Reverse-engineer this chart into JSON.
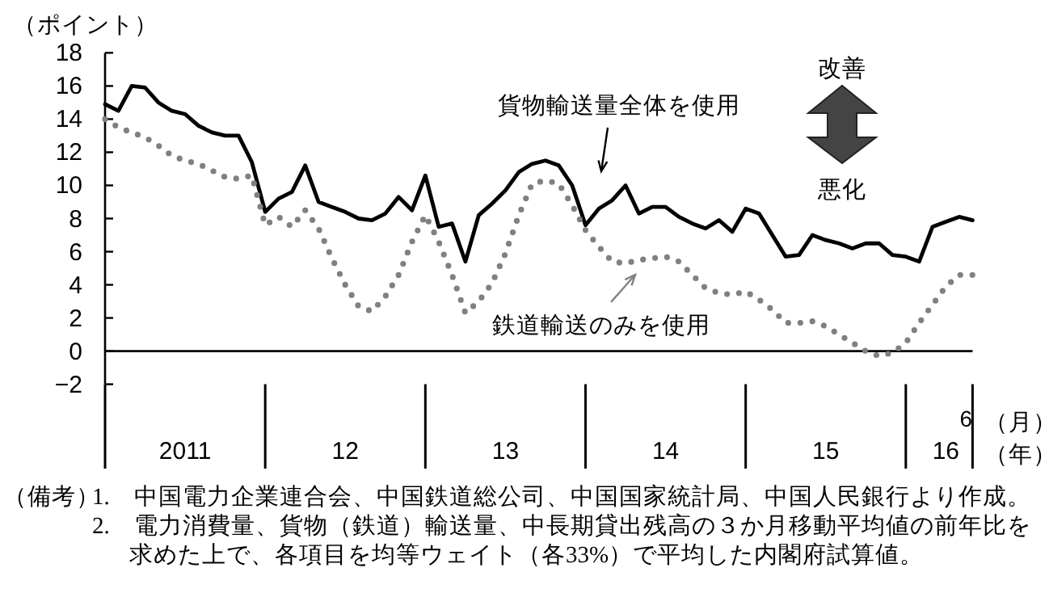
{
  "chart_data": {
    "type": "line",
    "ylabel": "（ポイント）",
    "xlabel": "（年）",
    "x": [
      "2011-01",
      "2011-02",
      "2011-03",
      "2011-04",
      "2011-05",
      "2011-06",
      "2011-07",
      "2011-08",
      "2011-09",
      "2011-10",
      "2011-11",
      "2011-12",
      "2012-01",
      "2012-02",
      "2012-03",
      "2012-04",
      "2012-05",
      "2012-06",
      "2012-07",
      "2012-08",
      "2012-09",
      "2012-10",
      "2012-11",
      "2012-12",
      "2013-01",
      "2013-02",
      "2013-03",
      "2013-04",
      "2013-05",
      "2013-06",
      "2013-07",
      "2013-08",
      "2013-09",
      "2013-10",
      "2013-11",
      "2013-12",
      "2014-01",
      "2014-02",
      "2014-03",
      "2014-04",
      "2014-05",
      "2014-06",
      "2014-07",
      "2014-08",
      "2014-09",
      "2014-10",
      "2014-11",
      "2014-12",
      "2015-01",
      "2015-02",
      "2015-03",
      "2015-04",
      "2015-05",
      "2015-06",
      "2015-07",
      "2015-08",
      "2015-09",
      "2015-10",
      "2015-11",
      "2015-12",
      "2016-01",
      "2016-02",
      "2016-03",
      "2016-04",
      "2016-05",
      "2016-06"
    ],
    "series": [
      {
        "name": "貨物輸送量全体を使用",
        "color": "#000000",
        "line_style": "solid",
        "values": [
          14.9,
          14.5,
          16.0,
          15.9,
          15.0,
          14.5,
          14.3,
          13.6,
          13.2,
          13.0,
          13.0,
          11.4,
          8.4,
          9.2,
          9.6,
          11.2,
          9.0,
          8.7,
          8.4,
          8.0,
          7.9,
          8.3,
          9.3,
          8.5,
          10.6,
          7.5,
          7.7,
          5.4,
          8.2,
          8.9,
          9.7,
          10.8,
          11.3,
          11.5,
          11.2,
          10.0,
          7.6,
          8.6,
          9.1,
          10.0,
          8.3,
          8.7,
          8.7,
          8.1,
          7.7,
          7.4,
          7.9,
          7.2,
          8.6,
          8.3,
          7.0,
          5.7,
          5.8,
          7.0,
          6.7,
          6.5,
          6.2,
          6.5,
          6.5,
          5.8,
          5.7,
          5.4,
          7.5,
          7.8,
          8.1,
          7.9
        ]
      },
      {
        "name": "鉄道輸送のみを使用",
        "color": "#808080",
        "line_style": "dotted",
        "values": [
          14.0,
          13.5,
          13.2,
          12.9,
          12.4,
          11.8,
          11.5,
          11.3,
          10.9,
          10.5,
          10.4,
          10.6,
          7.6,
          8.1,
          7.5,
          8.5,
          7.4,
          5.6,
          4.0,
          2.7,
          2.4,
          3.3,
          4.6,
          6.6,
          8.2,
          6.6,
          4.6,
          2.3,
          3.0,
          4.1,
          5.9,
          8.2,
          10.1,
          10.3,
          10.1,
          8.8,
          7.3,
          6.3,
          5.4,
          5.3,
          5.5,
          5.6,
          5.7,
          5.4,
          4.6,
          3.8,
          3.5,
          3.4,
          3.6,
          3.1,
          2.5,
          1.7,
          1.7,
          1.8,
          1.5,
          1.0,
          0.5,
          0.0,
          -0.3,
          -0.1,
          0.5,
          1.7,
          2.8,
          3.9,
          4.6,
          4.6
        ]
      }
    ],
    "xlim": [
      "2011-01",
      "2016-06"
    ],
    "xticks": [
      {
        "value": "2011-01",
        "label": null
      },
      {
        "value": "2012-01",
        "label": null
      },
      {
        "value": "2013-01",
        "label": null
      },
      {
        "value": "2014-01",
        "label": null
      },
      {
        "value": "2015-01",
        "label": null
      },
      {
        "value": "2016-01",
        "label": null
      },
      {
        "value": "2011-07",
        "label": "2011"
      },
      {
        "value": "2012-07",
        "label": "12"
      },
      {
        "value": "2013-07",
        "label": "13"
      },
      {
        "value": "2014-07",
        "label": "14"
      },
      {
        "value": "2015-07",
        "label": "15"
      },
      {
        "value": "2016-04",
        "label": "16"
      },
      {
        "value": "2016-06",
        "label": null
      }
    ],
    "ylim": [
      -2,
      18
    ],
    "yticks": [
      -2,
      0,
      2,
      4,
      6,
      8,
      10,
      12,
      14,
      16,
      18
    ],
    "ref_lines": [
      {
        "axis": "y",
        "value": 0,
        "label": null
      }
    ],
    "marker": "none",
    "grid": false,
    "annotations": [
      "改善",
      "悪化",
      "（月）",
      "6",
      "（備考）",
      "1.　中国電力企業連合会、中国鉄道総公司、中国国家統計局、中国人民銀行より作成。",
      "2.　電力消費量、貨物（鉄道）輸送量、中長期貸出残高の３か月移動平均値の前年比を求めた上で、各項目を均等ウェイト（各33%）で平均した内閣府試算値。"
    ]
  }
}
